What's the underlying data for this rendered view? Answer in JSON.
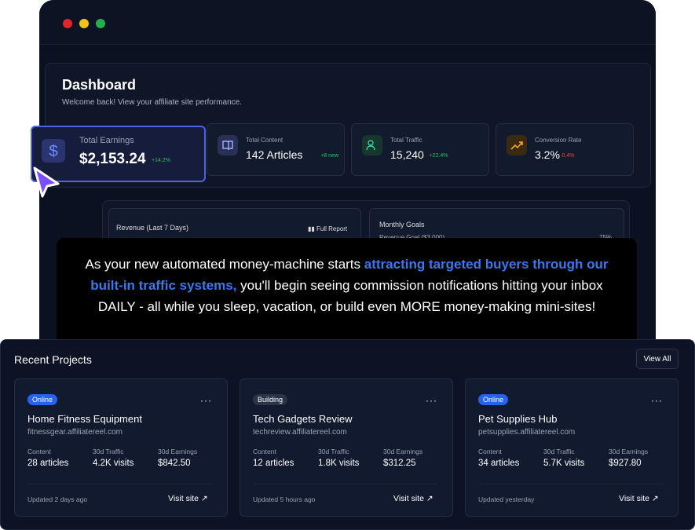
{
  "dashboard": {
    "title": "Dashboard",
    "subtitle": "Welcome back! View your affiliate site performance.",
    "stats": [
      {
        "label": "Total Earnings",
        "value": "$2,153.24",
        "change": "+14.2%"
      },
      {
        "label": "Total Content",
        "value": "142 Articles",
        "change": "+8 new"
      },
      {
        "label": "Total Traffic",
        "value": "15,240",
        "change": "+22.4%"
      },
      {
        "label": "Conversion Rate",
        "value": "3.2%",
        "change": "0.4%"
      }
    ]
  },
  "revenue_panel": {
    "title": "Revenue (Last 7 Days)",
    "link": "Full Report"
  },
  "goals_panel": {
    "title": "Monthly Goals",
    "goal": "Revenue Goal ($3,000)",
    "percent": "75%"
  },
  "callout": {
    "before": "As your new automated money-machine starts ",
    "highlight": "attracting targeted buyers through our built-in traffic systems,",
    "after": " you'll begin seeing commission notifications hitting your inbox DAILY - all while you sleep, vacation, or build even MORE money-making mini-sites!"
  },
  "recent_projects": {
    "title": "Recent Projects",
    "view_all": "View All",
    "projects": [
      {
        "status": "Online",
        "name": "Home Fitness Equipment",
        "url": "fitnessgear.affiliatereel.com",
        "stats": [
          {
            "label": "Content",
            "value": "28 articles"
          },
          {
            "label": "30d Traffic",
            "value": "4.2K visits"
          },
          {
            "label": "30d Earnings",
            "value": "$842.50"
          }
        ],
        "updated": "Updated 2 days ago",
        "link": "Visit site"
      },
      {
        "status": "Building",
        "name": "Tech Gadgets Review",
        "url": "techreview.affiliatereel.com",
        "stats": [
          {
            "label": "Content",
            "value": "12 articles"
          },
          {
            "label": "30d Traffic",
            "value": "1.8K visits"
          },
          {
            "label": "30d Earnings",
            "value": "$312.25"
          }
        ],
        "updated": "Updated 5 hours ago",
        "link": "Visit site"
      },
      {
        "status": "Online",
        "name": "Pet Supplies Hub",
        "url": "petsupplies.affiliatereel.com",
        "stats": [
          {
            "label": "Content",
            "value": "34 articles"
          },
          {
            "label": "30d Traffic",
            "value": "5.7K visits"
          },
          {
            "label": "30d Earnings",
            "value": "$927.80"
          }
        ],
        "updated": "Updated yesterday",
        "link": "Visit site"
      }
    ]
  }
}
